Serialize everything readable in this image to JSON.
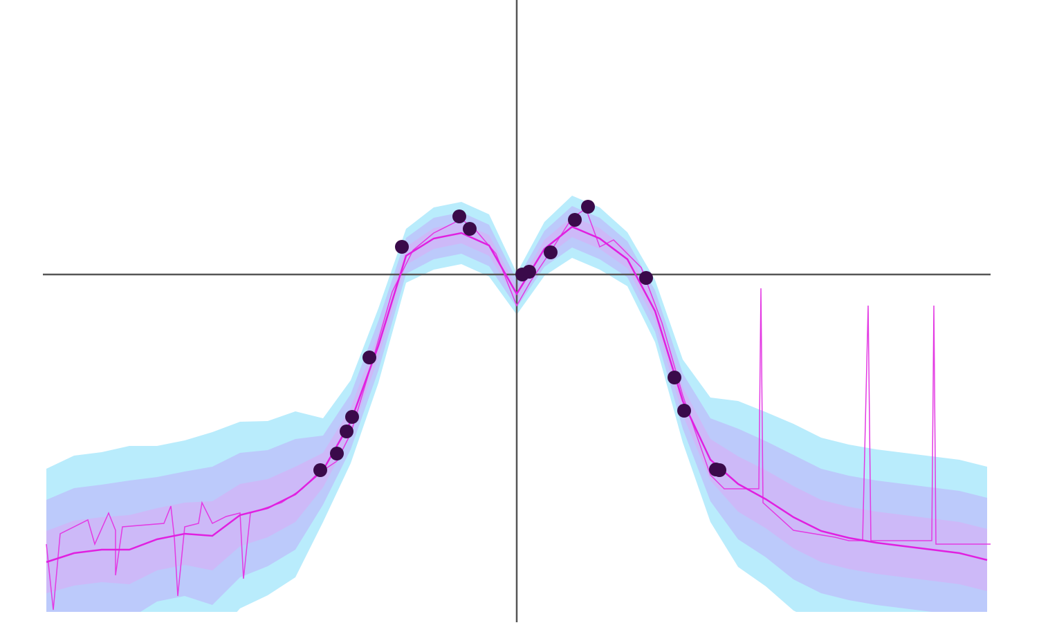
{
  "chart_data": {
    "type": "line",
    "xlim": [
      -6.85,
      6.85
    ],
    "ylim": [
      -4.88,
      3.97
    ],
    "x": [
      -6.8,
      -6.4,
      -6.0,
      -5.6,
      -5.2,
      -4.8,
      -4.4,
      -4.0,
      -3.6,
      -3.2,
      -2.8,
      -2.4,
      -2.0,
      -1.6,
      -1.2,
      -0.8,
      -0.4,
      0.0,
      0.4,
      0.8,
      1.2,
      1.6,
      2.0,
      2.4,
      2.8,
      3.2,
      3.6,
      4.0,
      4.4,
      4.8,
      5.2,
      5.6,
      6.0,
      6.4,
      6.8
    ],
    "mean": [
      -4.16,
      -4.03,
      -3.98,
      -3.98,
      -3.83,
      -3.75,
      -3.78,
      -3.48,
      -3.38,
      -3.18,
      -2.83,
      -2.13,
      -1.03,
      0.27,
      0.52,
      0.6,
      0.42,
      -0.28,
      0.37,
      0.69,
      0.52,
      0.22,
      -0.53,
      -1.83,
      -2.68,
      -3.03,
      -3.25,
      -3.51,
      -3.71,
      -3.81,
      -3.88,
      -3.93,
      -3.98,
      -4.03,
      -4.13
    ],
    "std": [
      0.45,
      0.47,
      0.47,
      0.5,
      0.45,
      0.45,
      0.5,
      0.45,
      0.42,
      0.4,
      0.25,
      0.2,
      0.18,
      0.13,
      0.15,
      0.15,
      0.15,
      0.1,
      0.13,
      0.15,
      0.15,
      0.13,
      0.15,
      0.2,
      0.3,
      0.4,
      0.42,
      0.45,
      0.45,
      0.45,
      0.45,
      0.45,
      0.45,
      0.45,
      0.45
    ],
    "band_sigmas": [
      3,
      2,
      1
    ],
    "band_colors": [
      "#b9ecfc",
      "#bccafb",
      "#cdb9f8"
    ],
    "line_color": "#e020e0",
    "sample": {
      "color": "#e33ae3",
      "x": [
        -6.8,
        -6.7,
        -6.6,
        -6.2,
        -6.1,
        -5.9,
        -5.8,
        -5.8,
        -5.7,
        -5.1,
        -5.0,
        -4.95,
        -4.9,
        -4.8,
        -4.6,
        -4.55,
        -4.4,
        -4.2,
        -4.0,
        -3.95,
        -3.85,
        -3.4,
        -3.1,
        -2.9,
        -2.6,
        -2.4,
        -2.1,
        -1.8,
        -1.5,
        -1.2,
        -0.8,
        -0.6,
        -0.3,
        0.0,
        0.2,
        0.5,
        0.8,
        1.0,
        1.2,
        1.4,
        1.8,
        2.1,
        2.4,
        2.8,
        3.0,
        3.3,
        3.5,
        3.53,
        3.56,
        4.0,
        4.3,
        4.6,
        4.8,
        5.0,
        5.08,
        5.12,
        6.0,
        6.03,
        6.06,
        6.5,
        6.85
      ],
      "y": [
        -3.9,
        -4.85,
        -3.75,
        -3.55,
        -3.9,
        -3.45,
        -3.7,
        -4.35,
        -3.65,
        -3.6,
        -3.35,
        -3.8,
        -4.65,
        -3.65,
        -3.6,
        -3.3,
        -3.6,
        -3.5,
        -3.45,
        -4.4,
        -3.45,
        -3.3,
        -3.1,
        -2.9,
        -2.7,
        -2.3,
        -1.3,
        -0.25,
        0.35,
        0.6,
        0.8,
        0.65,
        0.3,
        -0.45,
        -0.1,
        0.35,
        0.82,
        0.95,
        0.4,
        0.5,
        0.1,
        -0.7,
        -1.75,
        -2.9,
        -3.1,
        -3.1,
        -3.1,
        -0.2,
        -3.3,
        -3.7,
        -3.75,
        -3.8,
        -3.85,
        -3.85,
        -0.45,
        -3.85,
        -3.85,
        -0.45,
        -3.9,
        -3.9,
        -3.9
      ]
    },
    "points": {
      "color": "#3a0a4a",
      "x": [
        -1.66,
        -0.83,
        -0.68,
        -2.13,
        -2.38,
        -2.46,
        -2.6,
        -2.84,
        0.08,
        0.18,
        0.49,
        0.84,
        1.03,
        1.87,
        2.28,
        2.42,
        2.88,
        2.93
      ],
      "y": [
        0.4,
        0.84,
        0.66,
        -1.2,
        -2.06,
        -2.27,
        -2.59,
        -2.83,
        0.0,
        0.04,
        0.32,
        0.79,
        0.98,
        -0.05,
        -1.49,
        -1.97,
        -2.82,
        -2.83
      ]
    }
  }
}
